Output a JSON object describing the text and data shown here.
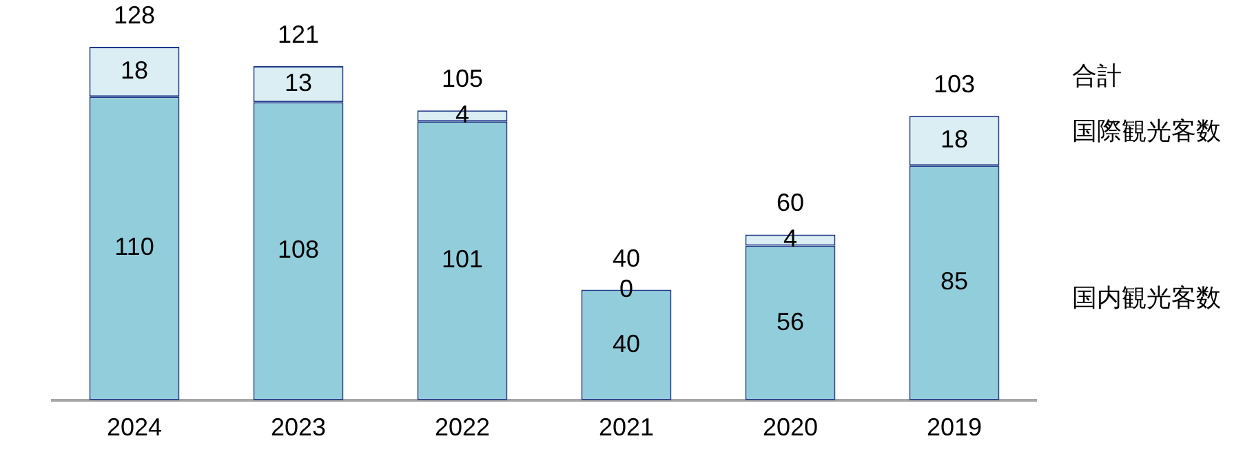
{
  "chart_data": {
    "type": "bar",
    "stacked": true,
    "categories": [
      "2024",
      "2023",
      "2022",
      "2021",
      "2020",
      "2019"
    ],
    "series": [
      {
        "name": "国内観光客数",
        "color": "#92cddc",
        "values": [
          110,
          108,
          101,
          40,
          56,
          85
        ]
      },
      {
        "name": "国際観光客数",
        "color": "#daeef3",
        "values": [
          18,
          13,
          4,
          0,
          4,
          18
        ]
      }
    ],
    "totals": [
      "128",
      "121",
      "105",
      "40",
      "60",
      "103"
    ],
    "annotations": [
      "合計"
    ],
    "data_labels": true,
    "legend": "right",
    "grid": false
  }
}
